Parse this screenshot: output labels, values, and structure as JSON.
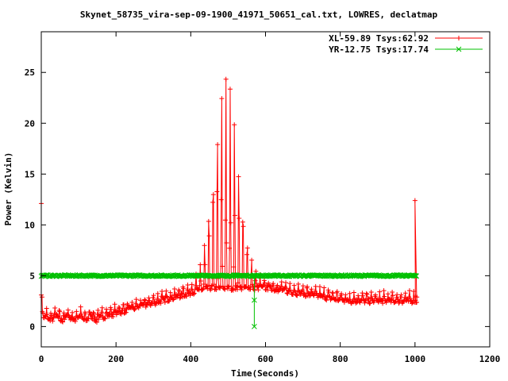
{
  "chart_data": {
    "type": "line",
    "title": "Skynet_58735_vira-sep-09-1900_41971_50651_cal.txt, LOWRES, declatmap",
    "xlabel": "Time(Seconds)",
    "ylabel": "Power (Kelvin)",
    "xlim": [
      0,
      1200
    ],
    "ylim": [
      -2,
      29
    ],
    "xticks": [
      "0",
      "200",
      "400",
      "600",
      "800",
      "1000",
      "1200"
    ],
    "yticks": [
      "0",
      "5",
      "10",
      "15",
      "20",
      "25"
    ],
    "xtick_values": [
      0,
      200,
      400,
      600,
      800,
      1000,
      1200
    ],
    "ytick_values": [
      0,
      5,
      10,
      15,
      20,
      25
    ],
    "grid": false,
    "legend_position": "top-right",
    "series": [
      {
        "name": "XL-59.89 Tsys:62.92",
        "color": "#ff0000",
        "marker": "plus",
        "description_points": {
          "time": 0,
          "start_values": [
            12.1,
            3.1,
            2.9
          ],
          "peak_time": 500,
          "peak_value": 24.0,
          "end_time": 1000,
          "end_value": 12.4
        }
      },
      {
        "name": "YR-12.75 Tsys:17.74",
        "color": "#00c000",
        "marker": "x",
        "baseline_value": 5.0,
        "dip_time": 570,
        "dip_value": 0.0
      }
    ]
  }
}
